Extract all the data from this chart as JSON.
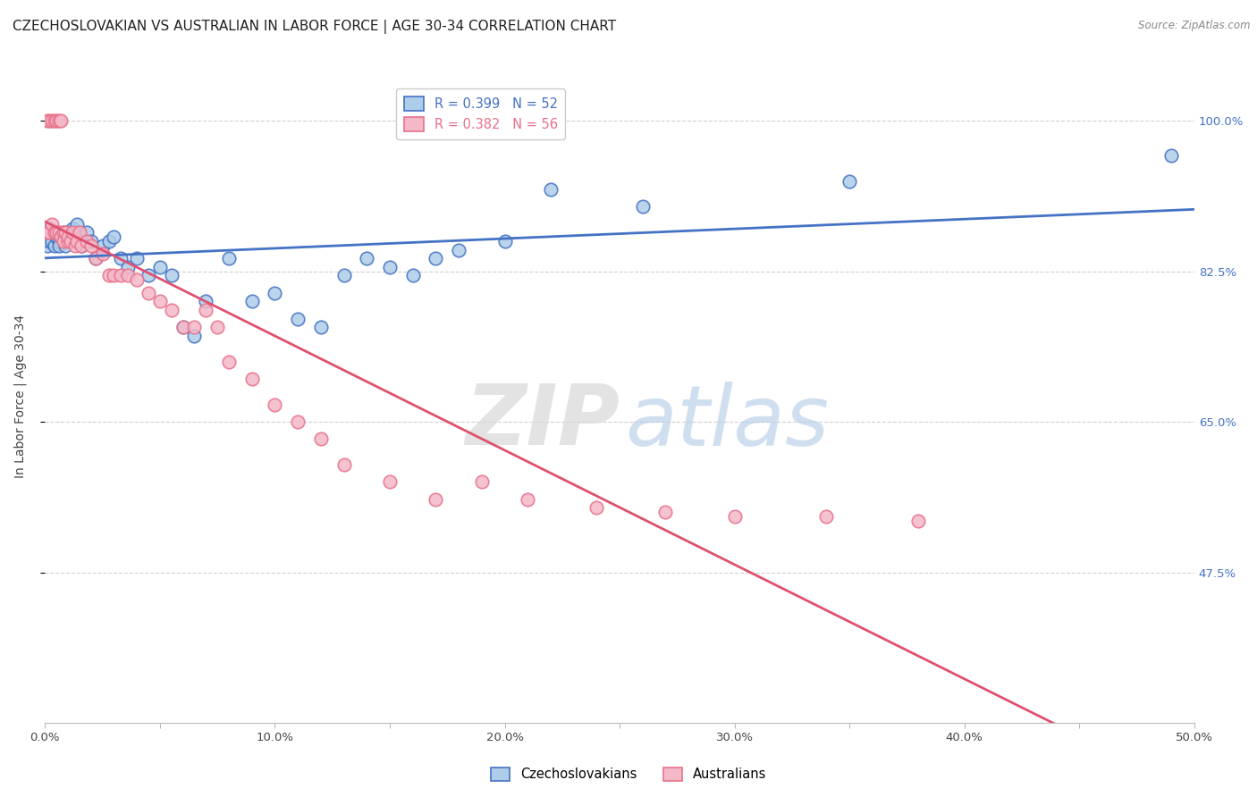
{
  "title": "CZECHOSLOVAKIAN VS AUSTRALIAN IN LABOR FORCE | AGE 30-34 CORRELATION CHART",
  "source": "Source: ZipAtlas.com",
  "ylabel": "In Labor Force | Age 30-34",
  "xlim": [
    0.0,
    0.5
  ],
  "ylim": [
    0.3,
    1.06
  ],
  "yticks": [
    0.475,
    0.65,
    0.825,
    1.0
  ],
  "ytick_labels": [
    "47.5%",
    "65.0%",
    "82.5%",
    "100.0%"
  ],
  "xticks": [
    0.0,
    0.05,
    0.1,
    0.15,
    0.2,
    0.25,
    0.3,
    0.35,
    0.4,
    0.45,
    0.5
  ],
  "xtick_labels": [
    "0.0%",
    "",
    "10.0%",
    "",
    "20.0%",
    "",
    "30.0%",
    "",
    "40.0%",
    "",
    "50.0%"
  ],
  "blue_R": 0.399,
  "blue_N": 52,
  "pink_R": 0.382,
  "pink_N": 56,
  "blue_color": "#aecde8",
  "pink_color": "#f4b8c8",
  "blue_edge_color": "#4472c4",
  "pink_edge_color": "#e8708a",
  "blue_line_color": "#4472c4",
  "pink_line_color": "#e05070",
  "legend_blue_label": "Czechoslovakians",
  "legend_pink_label": "Australians",
  "blue_x": [
    0.001,
    0.002,
    0.002,
    0.003,
    0.003,
    0.004,
    0.004,
    0.005,
    0.005,
    0.006,
    0.006,
    0.007,
    0.008,
    0.009,
    0.01,
    0.011,
    0.012,
    0.013,
    0.014,
    0.015,
    0.016,
    0.018,
    0.02,
    0.022,
    0.025,
    0.028,
    0.03,
    0.033,
    0.036,
    0.04,
    0.045,
    0.05,
    0.055,
    0.06,
    0.065,
    0.07,
    0.08,
    0.09,
    0.1,
    0.11,
    0.12,
    0.13,
    0.14,
    0.15,
    0.16,
    0.17,
    0.18,
    0.2,
    0.22,
    0.26,
    0.35,
    0.49
  ],
  "blue_y": [
    0.855,
    0.86,
    0.875,
    0.87,
    0.86,
    0.855,
    0.87,
    0.865,
    0.87,
    0.86,
    0.855,
    0.865,
    0.87,
    0.855,
    0.87,
    0.86,
    0.875,
    0.87,
    0.88,
    0.865,
    0.855,
    0.87,
    0.86,
    0.84,
    0.855,
    0.86,
    0.865,
    0.84,
    0.83,
    0.84,
    0.82,
    0.83,
    0.82,
    0.76,
    0.75,
    0.79,
    0.84,
    0.79,
    0.8,
    0.77,
    0.76,
    0.82,
    0.84,
    0.83,
    0.82,
    0.84,
    0.85,
    0.86,
    0.92,
    0.9,
    0.93,
    0.96
  ],
  "pink_x": [
    0.001,
    0.001,
    0.002,
    0.002,
    0.003,
    0.003,
    0.004,
    0.004,
    0.005,
    0.005,
    0.006,
    0.006,
    0.007,
    0.007,
    0.008,
    0.008,
    0.009,
    0.01,
    0.01,
    0.011,
    0.012,
    0.013,
    0.014,
    0.015,
    0.016,
    0.018,
    0.02,
    0.022,
    0.025,
    0.028,
    0.03,
    0.033,
    0.036,
    0.04,
    0.045,
    0.05,
    0.055,
    0.06,
    0.065,
    0.07,
    0.075,
    0.08,
    0.09,
    0.1,
    0.11,
    0.12,
    0.13,
    0.15,
    0.17,
    0.19,
    0.21,
    0.24,
    0.27,
    0.3,
    0.34,
    0.38
  ],
  "pink_y": [
    1.0,
    0.87,
    1.0,
    0.87,
    1.0,
    0.88,
    1.0,
    0.87,
    1.0,
    0.87,
    1.0,
    0.87,
    1.0,
    0.865,
    0.87,
    0.86,
    0.87,
    0.86,
    0.865,
    0.86,
    0.87,
    0.855,
    0.86,
    0.87,
    0.855,
    0.86,
    0.855,
    0.84,
    0.845,
    0.82,
    0.82,
    0.82,
    0.82,
    0.815,
    0.8,
    0.79,
    0.78,
    0.76,
    0.76,
    0.78,
    0.76,
    0.72,
    0.7,
    0.67,
    0.65,
    0.63,
    0.6,
    0.58,
    0.56,
    0.58,
    0.56,
    0.55,
    0.545,
    0.54,
    0.54,
    0.535
  ],
  "watermark_zip": "ZIP",
  "watermark_atlas": "atlas",
  "background_color": "#ffffff",
  "grid_color": "#d0d0d0",
  "axis_label_color": "#4472c4",
  "title_fontsize": 11,
  "label_fontsize": 10,
  "tick_fontsize": 9.5
}
